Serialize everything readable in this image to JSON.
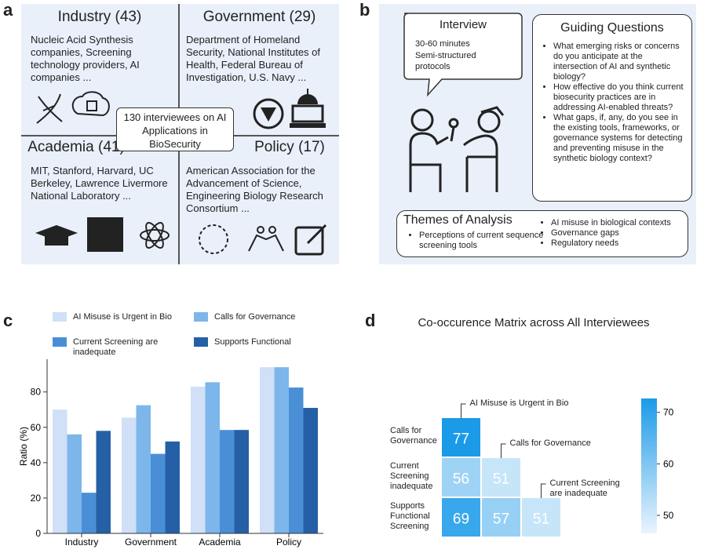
{
  "panel_labels": [
    "a",
    "b",
    "c",
    "d"
  ],
  "panel_a": {
    "center": "130 interviewees on AI Applications in BioSecurity",
    "quadrants": [
      {
        "title": "Industry (43)",
        "text": "Nucleic Acid Synthesis companies, Screening technology providers, AI companies ..."
      },
      {
        "title": "Government (29)",
        "text": "Department of Homeland Security, National Institutes of Health, Federal Bureau of Investigation, U.S. Navy ..."
      },
      {
        "title": "Academia (41)",
        "text": "MIT, Stanford, Harvard, UC Berkeley, Lawrence Livermore National Laboratory ..."
      },
      {
        "title": "Policy (17)",
        "text": "American Association for the Advancement of Science, Engineering Biology Research Consortium ..."
      }
    ]
  },
  "panel_b": {
    "interview": {
      "title": "Interview",
      "lines": [
        "30-60 minutes",
        "Semi-structured protocols"
      ]
    },
    "guiding_questions": {
      "title": "Guiding Questions",
      "items": [
        "What emerging risks or concerns do you anticipate at the intersection of AI and synthetic biology?",
        "How effective do you think current biosecurity practices are in addressing AI-enabled threats?",
        "What gaps, if, any, do you see in the existing tools, frameworks, or governance systems for detecting and preventing misuse in the synthetic biology context?"
      ]
    },
    "themes": {
      "title": "Themes of Analysis",
      "items": [
        "Perceptions of current sequence screening tools",
        "AI misuse in biological contexts",
        "Governance gaps",
        "Regulatory needs"
      ]
    }
  },
  "chart_data": [
    {
      "type": "bar",
      "ylabel": "Ratio (%)",
      "categories": [
        "Industry",
        "Government",
        "Academia",
        "Policy"
      ],
      "series": [
        {
          "name": "AI Misuse is Urgent in Bio",
          "color": "#cfe0f7",
          "values": [
            70,
            65.5,
            83,
            94
          ]
        },
        {
          "name": "Calls for Governance",
          "color": "#7db6ea",
          "values": [
            56,
            72.5,
            85.5,
            94
          ]
        },
        {
          "name": "Current Screening are inadequate",
          "color": "#4a8fd6",
          "values": [
            23,
            45,
            58.5,
            82.5
          ]
        },
        {
          "name": "Supports Functional",
          "color": "#2560a6",
          "values": [
            58,
            52,
            58.5,
            71
          ]
        }
      ],
      "ylim": [
        0,
        98.5
      ],
      "yticks": [
        0,
        20,
        40,
        60,
        80
      ]
    },
    {
      "type": "heatmap",
      "title": "Co-occurence Matrix across All Interviewees",
      "rows": [
        "Calls for Governance",
        "Current Screening inadequate",
        "Supports Functional Screening"
      ],
      "columns": [
        "AI Misuse is Urgent in Bio",
        "Calls for Governance",
        "Current Screening are inadequate"
      ],
      "values": [
        [
          77,
          null,
          null
        ],
        [
          56,
          51,
          null
        ],
        [
          69,
          57,
          51
        ]
      ],
      "colors": [
        "#eaf4fd",
        "#1b9ae8"
      ],
      "vlim": [
        46.5,
        72.7
      ],
      "cticks": [
        50,
        60,
        70
      ]
    }
  ]
}
